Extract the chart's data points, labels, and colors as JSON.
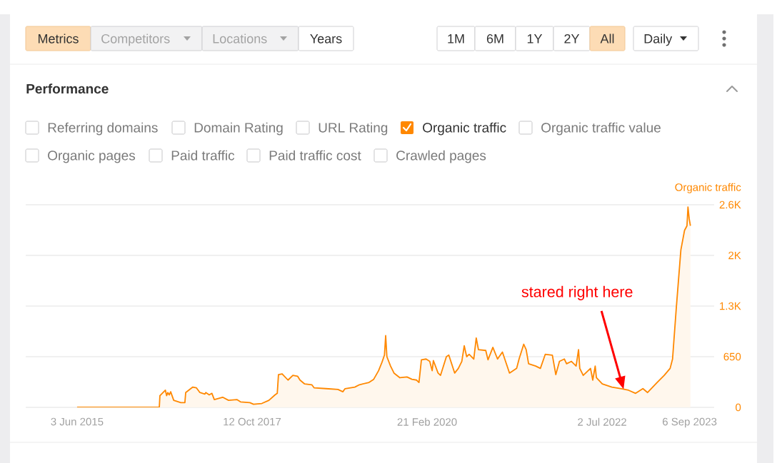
{
  "chart_data": {
    "type": "area",
    "title": "Performance",
    "ylabel": "Organic traffic",
    "color": "#ff8800",
    "grid": "y",
    "xlim": [
      "2014-09-23",
      "2024-01-05"
    ],
    "ylim": [
      0,
      2600
    ],
    "xticks": [
      {
        "value": "2015-06-03",
        "label": "3 Jun 2015"
      },
      {
        "value": "2017-10-12",
        "label": "12 Oct 2017"
      },
      {
        "value": "2020-02-21",
        "label": "21 Feb 2020"
      },
      {
        "value": "2022-07-02",
        "label": "2 Jul 2022"
      },
      {
        "value": "2023-09-06",
        "label": "6 Sep 2023"
      }
    ],
    "yticks": [
      0,
      650,
      {
        "value": 1300,
        "label": "1.3K"
      },
      {
        "value": 1950,
        "label": "2K"
      },
      {
        "value": 2600,
        "label": "2.6K"
      }
    ],
    "x": [
      "2015-06-03",
      "2016-07-12",
      "2016-07-15",
      "2016-08-11",
      "2016-08-17",
      "2016-08-23",
      "2016-08-30",
      "2016-09-06",
      "2016-09-21",
      "2016-10-26",
      "2016-11-15",
      "2016-11-19",
      "2016-12-24",
      "2017-01-11",
      "2017-01-28",
      "2017-02-21",
      "2017-02-26",
      "2017-03-15",
      "2017-03-28",
      "2017-04-09",
      "2017-05-20",
      "2017-06-18",
      "2017-07-29",
      "2017-08-16",
      "2017-10-01",
      "2017-10-19",
      "2017-11-29",
      "2018-01-03",
      "2018-02-02",
      "2018-02-13",
      "2018-02-19",
      "2018-03-09",
      "2018-04-07",
      "2018-05-01",
      "2018-05-24",
      "2018-06-05",
      "2018-06-28",
      "2018-08-02",
      "2018-08-14",
      "2018-10-12",
      "2018-12-09",
      "2019-01-02",
      "2019-01-13",
      "2019-03-02",
      "2019-03-25",
      "2019-05-11",
      "2019-06-03",
      "2019-06-27",
      "2019-07-14",
      "2019-07-26",
      "2019-08-01",
      "2019-08-07",
      "2019-08-25",
      "2019-09-11",
      "2019-10-10",
      "2019-11-14",
      "2019-12-08",
      "2019-12-31",
      "2020-01-12",
      "2020-01-24",
      "2020-02-16",
      "2020-03-05",
      "2020-03-17",
      "2020-03-23",
      "2020-04-15",
      "2020-04-27",
      "2020-05-26",
      "2020-06-07",
      "2020-07-06",
      "2020-07-24",
      "2020-08-10",
      "2020-08-22",
      "2020-09-03",
      "2020-09-15",
      "2020-10-08",
      "2020-10-20",
      "2020-10-31",
      "2020-12-06",
      "2020-12-17",
      "2021-01-10",
      "2021-02-02",
      "2021-02-26",
      "2021-04-02",
      "2021-05-07",
      "2021-05-19",
      "2021-06-11",
      "2021-06-23",
      "2021-07-05",
      "2021-08-09",
      "2021-09-01",
      "2021-09-25",
      "2021-10-30",
      "2021-11-16",
      "2021-12-04",
      "2021-12-28",
      "2022-01-08",
      "2022-02-01",
      "2022-02-24",
      "2022-03-08",
      "2022-03-14",
      "2022-03-31",
      "2022-05-06",
      "2022-05-17",
      "2022-05-29",
      "2022-06-04",
      "2022-07-03",
      "2022-08-19",
      "2022-10-05",
      "2022-11-09",
      "2022-12-14",
      "2023-01-19",
      "2023-02-11",
      "2023-03-30",
      "2023-05-04",
      "2023-06-02",
      "2023-06-14",
      "2023-07-02",
      "2023-07-25",
      "2023-08-12",
      "2023-08-24",
      "2023-08-29",
      "2023-09-04",
      "2023-09-10"
    ],
    "values": [
      0,
      0,
      150,
      220,
      150,
      190,
      160,
      200,
      90,
      60,
      60,
      190,
      260,
      250,
      190,
      170,
      190,
      160,
      180,
      100,
      130,
      90,
      100,
      70,
      60,
      40,
      50,
      90,
      160,
      180,
      420,
      430,
      350,
      410,
      400,
      350,
      300,
      290,
      250,
      240,
      230,
      200,
      240,
      260,
      290,
      320,
      360,
      470,
      580,
      670,
      920,
      650,
      530,
      440,
      380,
      390,
      360,
      350,
      320,
      610,
      620,
      590,
      470,
      600,
      440,
      410,
      650,
      670,
      440,
      500,
      590,
      790,
      650,
      680,
      620,
      890,
      740,
      730,
      610,
      770,
      620,
      710,
      440,
      500,
      620,
      810,
      740,
      560,
      530,
      500,
      680,
      670,
      420,
      590,
      620,
      560,
      590,
      530,
      740,
      500,
      410,
      500,
      350,
      530,
      380,
      300,
      260,
      240,
      220,
      180,
      240,
      190,
      320,
      410,
      500,
      620,
      1260,
      2020,
      2270,
      2330,
      2570,
      2420,
      2330
    ],
    "annotations": [
      "Metrics",
      "Competitors",
      "Locations",
      "Years",
      "1M",
      "6M",
      "1Y",
      "2Y",
      "All",
      "Daily",
      "Referring domains",
      "Domain Rating",
      "URL Rating",
      "Organic traffic",
      "Organic traffic value",
      "Organic pages",
      "Paid traffic",
      "Paid traffic cost",
      "Crawled pages",
      {
        "text": "stared right here",
        "x": "2022-10-16",
        "y": 230
      }
    ]
  }
}
